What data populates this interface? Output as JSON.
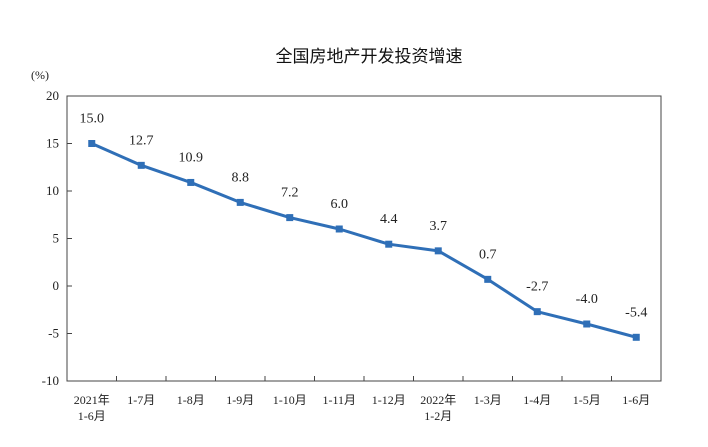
{
  "chart_data": {
    "type": "line",
    "title": "全国房地产开发投资增速",
    "unit_label": "(%)",
    "categories": [
      [
        "2021年",
        "1-6月"
      ],
      [
        "1-7月"
      ],
      [
        "1-8月"
      ],
      [
        "1-9月"
      ],
      [
        "1-10月"
      ],
      [
        "1-11月"
      ],
      [
        "1-12月"
      ],
      [
        "2022年",
        "1-2月"
      ],
      [
        "1-3月"
      ],
      [
        "1-4月"
      ],
      [
        "1-5月"
      ],
      [
        "1-6月"
      ]
    ],
    "series": [
      {
        "values": [
          15.0,
          12.7,
          10.9,
          8.8,
          7.2,
          6.0,
          4.4,
          3.7,
          0.7,
          -2.7,
          -4.0,
          -5.4
        ],
        "labels": [
          "15.0",
          "12.7",
          "10.9",
          "8.8",
          "7.2",
          "6.0",
          "4.4",
          "3.7",
          "0.7",
          "-2.7",
          "-4.0",
          "-5.4"
        ],
        "color": "#2f6fb7"
      }
    ],
    "ylim": [
      -10,
      20
    ],
    "yticks": [
      20,
      15,
      10,
      5,
      0,
      -5,
      -10
    ],
    "grid": false,
    "legend": "none"
  }
}
